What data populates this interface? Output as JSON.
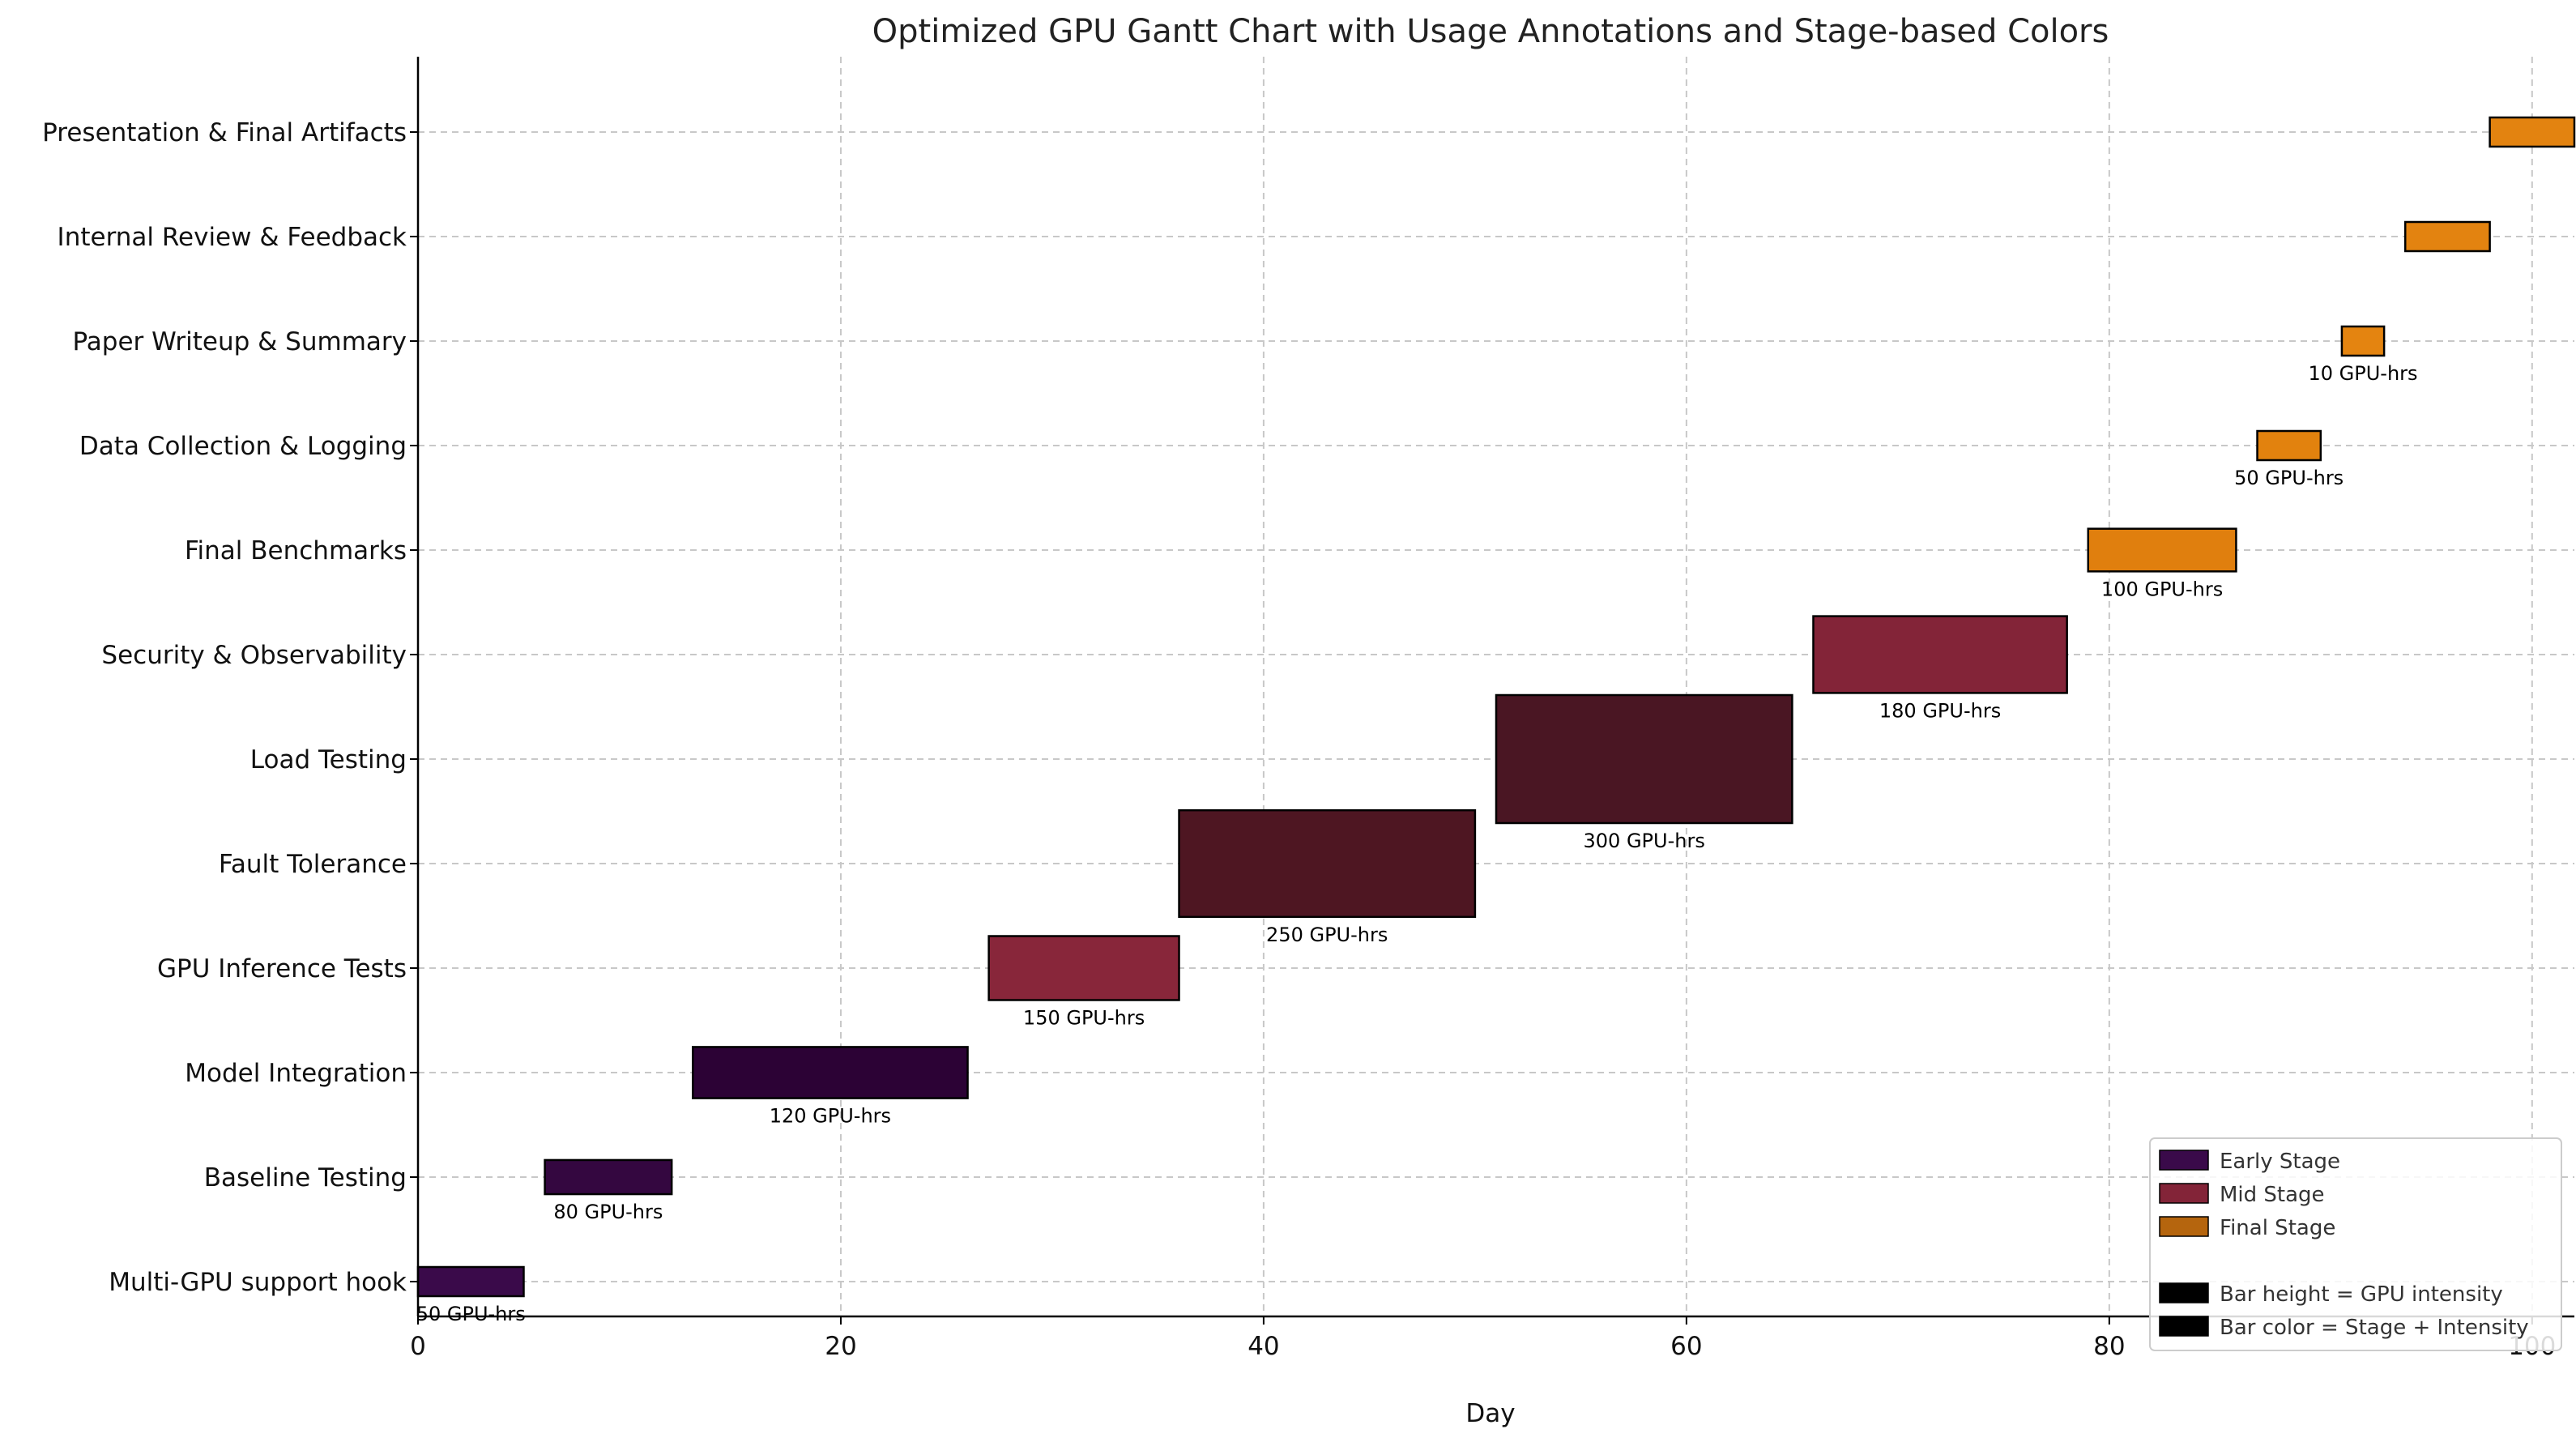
{
  "chart_data": {
    "type": "gantt",
    "title": "Optimized GPU Gantt Chart with Usage Annotations and Stage-based Colors",
    "xlabel": "Day",
    "ylabel": "",
    "xlim": [
      0,
      102
    ],
    "xticks": [
      0,
      20,
      40,
      60,
      80,
      100
    ],
    "grid": true,
    "legend_position": "bottom-right",
    "tasks": [
      {
        "name": "Multi-GPU support hook",
        "start": 0,
        "end": 5,
        "gpu_hours": 50,
        "annotation": "50 GPU-hrs",
        "stage": "early",
        "color": "#3a0a4a"
      },
      {
        "name": "Baseline Testing",
        "start": 6,
        "end": 12,
        "gpu_hours": 80,
        "annotation": "80 GPU-hrs",
        "stage": "early",
        "color": "#340740"
      },
      {
        "name": "Model Integration",
        "start": 13,
        "end": 26,
        "gpu_hours": 120,
        "annotation": "120 GPU-hrs",
        "stage": "early",
        "color": "#2c0235"
      },
      {
        "name": "GPU Inference Tests",
        "start": 27,
        "end": 36,
        "gpu_hours": 150,
        "annotation": "150 GPU-hrs",
        "stage": "mid",
        "color": "#88263a"
      },
      {
        "name": "Fault Tolerance",
        "start": 36,
        "end": 50,
        "gpu_hours": 250,
        "annotation": "250 GPU-hrs",
        "stage": "mid",
        "color": "#4e1622"
      },
      {
        "name": "Load Testing",
        "start": 51,
        "end": 65,
        "gpu_hours": 300,
        "annotation": "300 GPU-hrs",
        "stage": "mid",
        "color": "#4a1623"
      },
      {
        "name": "Security & Observability",
        "start": 66,
        "end": 78,
        "gpu_hours": 180,
        "annotation": "180 GPU-hrs",
        "stage": "mid",
        "color": "#832438"
      },
      {
        "name": "Final Benchmarks",
        "start": 79,
        "end": 86,
        "gpu_hours": 100,
        "annotation": "100 GPU-hrs",
        "stage": "final",
        "color": "#e07f0e"
      },
      {
        "name": "Data Collection & Logging",
        "start": 87,
        "end": 90,
        "gpu_hours": 50,
        "annotation": "50 GPU-hrs",
        "stage": "final",
        "color": "#e2820e"
      },
      {
        "name": "Paper Writeup & Summary",
        "start": 91,
        "end": 93,
        "gpu_hours": 10,
        "annotation": "10 GPU-hrs",
        "stage": "final",
        "color": "#e48410"
      },
      {
        "name": "Internal Review & Feedback",
        "start": 94,
        "end": 98,
        "gpu_hours": 30,
        "annotation": "",
        "stage": "final",
        "color": "#e38310"
      },
      {
        "name": "Presentation & Final Artifacts",
        "start": 98,
        "end": 102,
        "gpu_hours": 30,
        "annotation": "",
        "stage": "final",
        "color": "#e38310"
      }
    ],
    "legend": [
      {
        "label": "Early Stage",
        "color": "#3a0a4a"
      },
      {
        "label": "Mid Stage",
        "color": "#832438"
      },
      {
        "label": "Final Stage",
        "color": "#b5650e"
      },
      {
        "label": "",
        "color": ""
      },
      {
        "label": "Bar height = GPU intensity",
        "color": "#000000"
      },
      {
        "label": "Bar color = Stage + Intensity",
        "color": "#000000"
      }
    ]
  }
}
